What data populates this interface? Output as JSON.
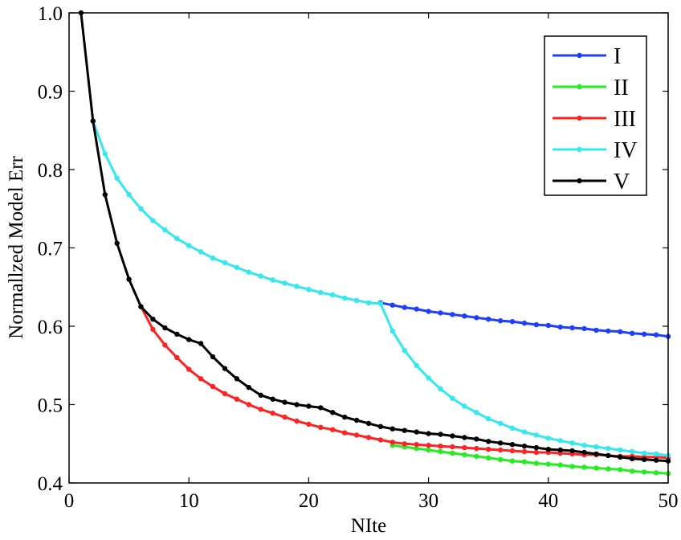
{
  "chart_data": {
    "type": "line",
    "title": "",
    "xlabel": "NIte",
    "ylabel": "Normallzed Model Err",
    "xlim": [
      0,
      50
    ],
    "ylim": [
      0.4,
      1.0
    ],
    "x_ticks": [
      0,
      10,
      20,
      30,
      40,
      50
    ],
    "x_tick_labels": [
      "0",
      "10",
      "20",
      "30",
      "40",
      "50"
    ],
    "y_ticks": [
      0.4,
      0.5,
      0.6,
      0.7,
      0.8,
      0.9,
      1.0
    ],
    "y_tick_labels": [
      "0.4",
      "0.5",
      "0.6",
      "0.7",
      "0.8",
      "0.9",
      "1.0"
    ],
    "grid": false,
    "legend_position": "top-right",
    "series": [
      {
        "name": "I",
        "color": "#1f3fff",
        "x": [
          26,
          27,
          28,
          29,
          30,
          31,
          32,
          33,
          34,
          35,
          36,
          37,
          38,
          39,
          40,
          41,
          42,
          43,
          44,
          45,
          46,
          47,
          48,
          49,
          50
        ],
        "y": [
          0.63,
          0.627,
          0.624,
          0.622,
          0.619,
          0.617,
          0.615,
          0.613,
          0.611,
          0.609,
          0.607,
          0.606,
          0.604,
          0.602,
          0.601,
          0.599,
          0.598,
          0.597,
          0.595,
          0.594,
          0.593,
          0.591,
          0.59,
          0.589,
          0.587
        ]
      },
      {
        "name": "II",
        "color": "#22ee22",
        "x": [
          27,
          28,
          29,
          30,
          31,
          32,
          33,
          34,
          35,
          36,
          37,
          38,
          39,
          40,
          41,
          42,
          43,
          44,
          45,
          46,
          47,
          48,
          49,
          50
        ],
        "y": [
          0.448,
          0.446,
          0.444,
          0.442,
          0.44,
          0.438,
          0.436,
          0.434,
          0.432,
          0.43,
          0.428,
          0.427,
          0.425,
          0.424,
          0.423,
          0.421,
          0.42,
          0.419,
          0.418,
          0.417,
          0.415,
          0.414,
          0.413,
          0.412
        ]
      },
      {
        "name": "III",
        "color": "#ff2222",
        "x": [
          6,
          7,
          8,
          9,
          10,
          11,
          12,
          13,
          14,
          15,
          16,
          17,
          18,
          19,
          20,
          21,
          22,
          23,
          24,
          25,
          26,
          27,
          28,
          29,
          30,
          31,
          32,
          33,
          34,
          35,
          36,
          37,
          38,
          39,
          40,
          41,
          42,
          43,
          44,
          45,
          46,
          47,
          48,
          49,
          50
        ],
        "y": [
          0.625,
          0.596,
          0.576,
          0.56,
          0.545,
          0.533,
          0.523,
          0.514,
          0.507,
          0.5,
          0.494,
          0.489,
          0.484,
          0.479,
          0.475,
          0.471,
          0.468,
          0.464,
          0.461,
          0.458,
          0.455,
          0.452,
          0.45,
          0.449,
          0.448,
          0.447,
          0.446,
          0.445,
          0.444,
          0.443,
          0.442,
          0.441,
          0.44,
          0.439,
          0.439,
          0.438,
          0.437,
          0.436,
          0.436,
          0.435,
          0.434,
          0.434,
          0.433,
          0.433,
          0.432
        ]
      },
      {
        "name": "IV",
        "color": "#33e8ee",
        "x": [
          2,
          3,
          4,
          5,
          6,
          7,
          8,
          9,
          10,
          11,
          12,
          13,
          14,
          15,
          16,
          17,
          18,
          19,
          20,
          21,
          22,
          23,
          24,
          25,
          26,
          27,
          28,
          29,
          30,
          31,
          32,
          33,
          34,
          35,
          36,
          37,
          38,
          39,
          40,
          41,
          42,
          43,
          44,
          45,
          46,
          47,
          48,
          49,
          50
        ],
        "y": [
          0.862,
          0.82,
          0.789,
          0.768,
          0.75,
          0.735,
          0.723,
          0.712,
          0.703,
          0.695,
          0.687,
          0.681,
          0.675,
          0.669,
          0.664,
          0.659,
          0.655,
          0.651,
          0.647,
          0.643,
          0.64,
          0.636,
          0.633,
          0.63,
          0.629,
          0.594,
          0.569,
          0.55,
          0.534,
          0.52,
          0.508,
          0.498,
          0.49,
          0.482,
          0.476,
          0.47,
          0.465,
          0.461,
          0.457,
          0.454,
          0.451,
          0.448,
          0.446,
          0.444,
          0.442,
          0.44,
          0.438,
          0.437,
          0.435
        ]
      },
      {
        "name": "V",
        "color": "#000000",
        "x": [
          1,
          2,
          3,
          4,
          5,
          6,
          7,
          8,
          9,
          10,
          11,
          12,
          13,
          14,
          15,
          16,
          17,
          18,
          19,
          20,
          21,
          22,
          23,
          24,
          25,
          26,
          27,
          28,
          29,
          30,
          31,
          32,
          33,
          34,
          35,
          36,
          37,
          38,
          39,
          40,
          41,
          42,
          43,
          44,
          45,
          46,
          47,
          48,
          49,
          50
        ],
        "y": [
          1.0,
          0.862,
          0.768,
          0.706,
          0.66,
          0.625,
          0.609,
          0.598,
          0.59,
          0.583,
          0.578,
          0.561,
          0.546,
          0.533,
          0.522,
          0.512,
          0.507,
          0.503,
          0.5,
          0.498,
          0.496,
          0.49,
          0.484,
          0.48,
          0.476,
          0.472,
          0.469,
          0.467,
          0.465,
          0.463,
          0.462,
          0.46,
          0.458,
          0.456,
          0.453,
          0.451,
          0.449,
          0.447,
          0.445,
          0.443,
          0.442,
          0.441,
          0.439,
          0.437,
          0.435,
          0.433,
          0.431,
          0.43,
          0.429,
          0.428
        ]
      }
    ]
  }
}
